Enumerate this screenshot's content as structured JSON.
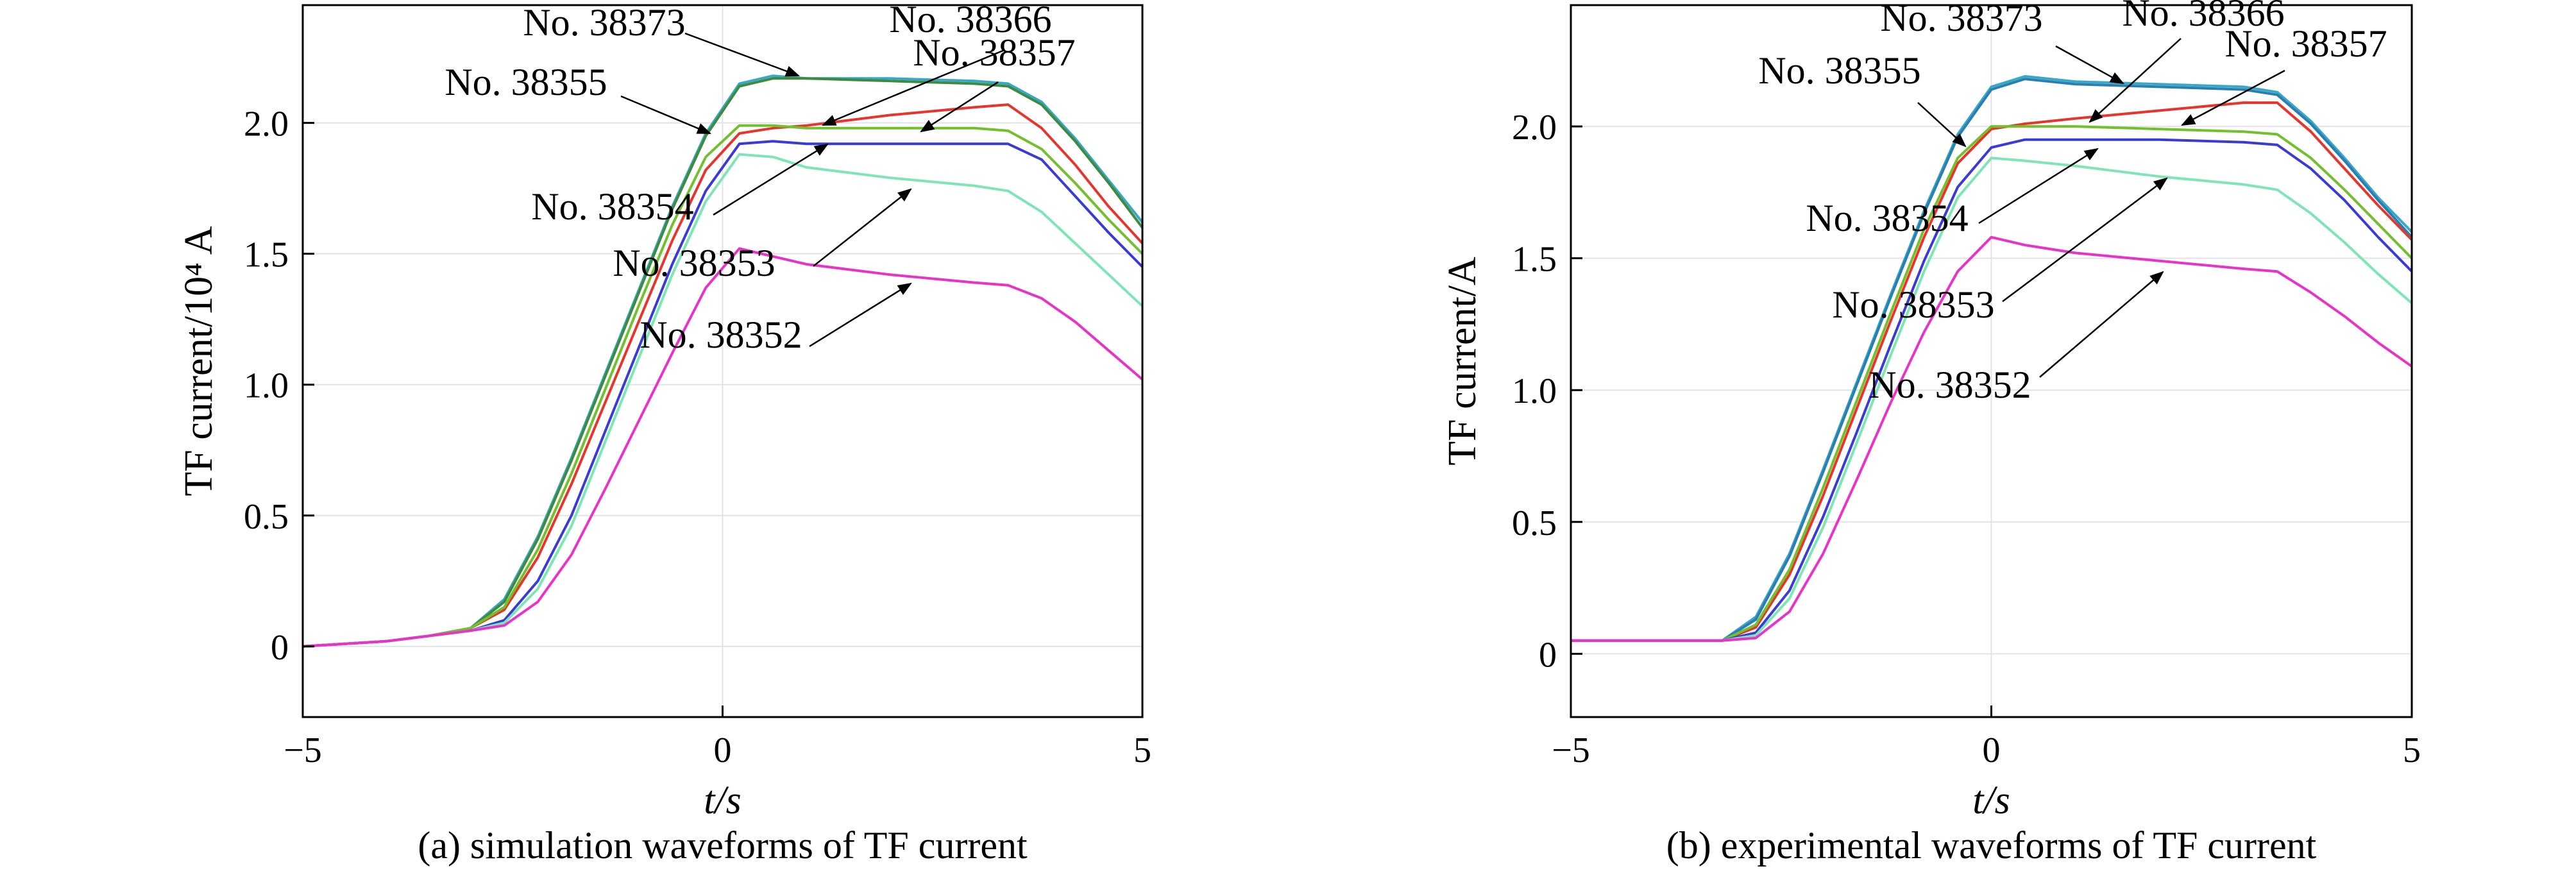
{
  "chart_data": [
    {
      "type": "line",
      "panel": "a",
      "caption": "(a) simulation waveforms of TF current",
      "xlabel": "t/s",
      "ylabel": "TF current/10⁴ A",
      "xlim": [
        -5,
        5
      ],
      "ylim": [
        -0.27,
        2.45
      ],
      "xticks": [
        -5,
        0,
        5
      ],
      "xtick_labels": [
        "−5",
        "0",
        "5"
      ],
      "yticks": [
        0,
        0.5,
        1.0,
        1.5,
        2.0
      ],
      "ytick_labels": [
        "0",
        "0.5",
        "1.0",
        "1.5",
        "2.0"
      ],
      "grid": true,
      "series": [
        {
          "name": "No. 38373",
          "color": "#38a8c8",
          "x": [
            -5,
            -4,
            -3.5,
            -3,
            -2.6,
            -2.2,
            -1.8,
            -1.4,
            -1,
            -0.6,
            -0.2,
            0.2,
            0.6,
            1,
            2,
            3,
            3.4,
            3.8,
            4.2,
            4.6,
            5
          ],
          "y": [
            0,
            0.02,
            0.04,
            0.07,
            0.18,
            0.42,
            0.72,
            1.04,
            1.36,
            1.68,
            1.96,
            2.15,
            2.18,
            2.17,
            2.17,
            2.16,
            2.15,
            2.08,
            1.94,
            1.78,
            1.62
          ]
        },
        {
          "name": "No. 38366",
          "color": "#3e8a3e",
          "x": [
            -5,
            -4,
            -3.5,
            -3,
            -2.6,
            -2.2,
            -1.8,
            -1.4,
            -1,
            -0.6,
            -0.2,
            0.2,
            0.6,
            1,
            2,
            3,
            3.4,
            3.8,
            4.2,
            4.6,
            5
          ],
          "y": [
            0,
            0.02,
            0.04,
            0.07,
            0.17,
            0.41,
            0.71,
            1.03,
            1.35,
            1.67,
            1.95,
            2.14,
            2.17,
            2.17,
            2.16,
            2.15,
            2.14,
            2.07,
            1.93,
            1.77,
            1.6
          ]
        },
        {
          "name": "No. 38357",
          "color": "#e8342a",
          "x": [
            -5,
            -4,
            -3.5,
            -3,
            -2.6,
            -2.2,
            -1.8,
            -1.4,
            -1,
            -0.6,
            -0.2,
            0.2,
            0.6,
            1,
            2,
            3,
            3.4,
            3.8,
            4.2,
            4.6,
            5
          ],
          "y": [
            0,
            0.02,
            0.04,
            0.07,
            0.14,
            0.34,
            0.62,
            0.93,
            1.24,
            1.55,
            1.82,
            1.96,
            1.98,
            1.99,
            2.03,
            2.06,
            2.07,
            1.98,
            1.84,
            1.68,
            1.54
          ]
        },
        {
          "name": "No. 38355",
          "color": "#72c02c",
          "x": [
            -5,
            -4,
            -3.5,
            -3,
            -2.6,
            -2.2,
            -1.8,
            -1.4,
            -1,
            -0.6,
            -0.2,
            0.2,
            0.6,
            1,
            2,
            3,
            3.4,
            3.8,
            4.2,
            4.6,
            5
          ],
          "y": [
            0,
            0.02,
            0.04,
            0.07,
            0.15,
            0.37,
            0.66,
            0.98,
            1.3,
            1.61,
            1.87,
            1.99,
            1.99,
            1.98,
            1.98,
            1.98,
            1.97,
            1.9,
            1.77,
            1.63,
            1.5
          ]
        },
        {
          "name": "No. 38354",
          "color": "#3a3ad8",
          "x": [
            -5,
            -4,
            -3.5,
            -3,
            -2.6,
            -2.2,
            -1.8,
            -1.4,
            -1,
            -0.6,
            -0.2,
            0.2,
            0.6,
            1,
            2,
            3,
            3.4,
            3.8,
            4.2,
            4.6,
            5
          ],
          "y": [
            0,
            0.02,
            0.04,
            0.06,
            0.1,
            0.25,
            0.5,
            0.82,
            1.14,
            1.46,
            1.74,
            1.92,
            1.93,
            1.92,
            1.92,
            1.92,
            1.92,
            1.86,
            1.72,
            1.58,
            1.45
          ]
        },
        {
          "name": "No. 38353",
          "color": "#7ce6b4",
          "x": [
            -5,
            -4,
            -3.5,
            -3,
            -2.6,
            -2.2,
            -1.8,
            -1.4,
            -1,
            -0.6,
            -0.2,
            0.2,
            0.6,
            1,
            2,
            3,
            3.4,
            3.8,
            4.2,
            4.6,
            5
          ],
          "y": [
            0,
            0.02,
            0.04,
            0.06,
            0.09,
            0.22,
            0.46,
            0.78,
            1.1,
            1.42,
            1.7,
            1.88,
            1.87,
            1.83,
            1.79,
            1.76,
            1.74,
            1.66,
            1.54,
            1.42,
            1.3
          ]
        },
        {
          "name": "No. 38352",
          "color": "#e832c8",
          "x": [
            -5,
            -4,
            -3.5,
            -3,
            -2.6,
            -2.2,
            -1.8,
            -1.4,
            -1,
            -0.6,
            -0.2,
            0.2,
            0.6,
            1,
            2,
            3,
            3.4,
            3.8,
            4.2,
            4.6,
            5
          ],
          "y": [
            0,
            0.02,
            0.04,
            0.06,
            0.08,
            0.17,
            0.35,
            0.6,
            0.86,
            1.12,
            1.37,
            1.52,
            1.49,
            1.46,
            1.42,
            1.39,
            1.38,
            1.33,
            1.24,
            1.13,
            1.02
          ]
        }
      ]
    },
    {
      "type": "line",
      "panel": "b",
      "caption": "(b) experimental waveforms of TF current",
      "xlabel": "t/s",
      "ylabel": "TF current/A",
      "xlim": [
        -5,
        5
      ],
      "ylim": [
        -0.24,
        2.46
      ],
      "xticks": [
        -5,
        0,
        5
      ],
      "xtick_labels": [
        "−5",
        "0",
        "5"
      ],
      "yticks": [
        0,
        0.5,
        1.0,
        1.5,
        2.0
      ],
      "ytick_labels": [
        "0",
        "0.5",
        "1.0",
        "1.5",
        "2.0"
      ],
      "grid": true,
      "series": [
        {
          "name": "No. 38373",
          "color": "#38a8c8",
          "x": [
            -5,
            -4,
            -3.2,
            -2.8,
            -2.4,
            -2,
            -1.6,
            -1.2,
            -0.8,
            -0.4,
            0,
            0.4,
            1,
            2,
            3,
            3.4,
            3.8,
            4.2,
            4.6,
            5
          ],
          "y": [
            0.05,
            0.05,
            0.05,
            0.14,
            0.38,
            0.7,
            1.03,
            1.36,
            1.68,
            1.97,
            2.15,
            2.19,
            2.17,
            2.16,
            2.15,
            2.13,
            2.02,
            1.88,
            1.73,
            1.6
          ]
        },
        {
          "name": "No. 38366",
          "color": "#2a7fb0",
          "x": [
            -5,
            -4,
            -3.2,
            -2.8,
            -2.4,
            -2,
            -1.6,
            -1.2,
            -0.8,
            -0.4,
            0,
            0.4,
            1,
            2,
            3,
            3.4,
            3.8,
            4.2,
            4.6,
            5
          ],
          "y": [
            0.05,
            0.05,
            0.05,
            0.13,
            0.37,
            0.69,
            1.02,
            1.35,
            1.67,
            1.96,
            2.14,
            2.18,
            2.16,
            2.15,
            2.14,
            2.12,
            2.01,
            1.87,
            1.72,
            1.58
          ]
        },
        {
          "name": "No. 38357",
          "color": "#e8342a",
          "x": [
            -5,
            -4,
            -3.2,
            -2.8,
            -2.4,
            -2,
            -1.6,
            -1.2,
            -0.8,
            -0.4,
            0,
            0.4,
            1,
            2,
            3,
            3.4,
            3.8,
            4.2,
            4.6,
            5
          ],
          "y": [
            0.05,
            0.05,
            0.05,
            0.1,
            0.3,
            0.6,
            0.93,
            1.26,
            1.58,
            1.86,
            1.99,
            2.01,
            2.03,
            2.06,
            2.09,
            2.09,
            1.98,
            1.84,
            1.7,
            1.57
          ]
        },
        {
          "name": "No. 38355",
          "color": "#72c02c",
          "x": [
            -5,
            -4,
            -3.2,
            -2.8,
            -2.4,
            -2,
            -1.6,
            -1.2,
            -0.8,
            -0.4,
            0,
            0.4,
            1,
            2,
            3,
            3.4,
            3.8,
            4.2,
            4.6,
            5
          ],
          "y": [
            0.05,
            0.05,
            0.05,
            0.11,
            0.32,
            0.63,
            0.96,
            1.29,
            1.61,
            1.88,
            2.0,
            2.0,
            2.0,
            1.99,
            1.98,
            1.97,
            1.88,
            1.76,
            1.63,
            1.5
          ]
        },
        {
          "name": "No. 38354",
          "color": "#3a3ad8",
          "x": [
            -5,
            -4,
            -3.2,
            -2.8,
            -2.4,
            -2,
            -1.6,
            -1.2,
            -0.8,
            -0.4,
            0,
            0.4,
            1,
            2,
            3,
            3.4,
            3.8,
            4.2,
            4.6,
            5
          ],
          "y": [
            0.05,
            0.05,
            0.05,
            0.08,
            0.24,
            0.52,
            0.84,
            1.17,
            1.49,
            1.77,
            1.92,
            1.95,
            1.95,
            1.95,
            1.94,
            1.93,
            1.84,
            1.72,
            1.58,
            1.45
          ]
        },
        {
          "name": "No. 38353",
          "color": "#7ce6b4",
          "x": [
            -5,
            -4,
            -3.2,
            -2.8,
            -2.4,
            -2,
            -1.6,
            -1.2,
            -0.8,
            -0.4,
            0,
            0.4,
            1,
            2,
            3,
            3.4,
            3.8,
            4.2,
            4.6,
            5
          ],
          "y": [
            0.05,
            0.05,
            0.05,
            0.07,
            0.21,
            0.48,
            0.8,
            1.13,
            1.45,
            1.73,
            1.88,
            1.87,
            1.85,
            1.81,
            1.78,
            1.76,
            1.67,
            1.56,
            1.44,
            1.33
          ]
        },
        {
          "name": "No. 38352",
          "color": "#e832c8",
          "x": [
            -5,
            -4,
            -3.2,
            -2.8,
            -2.4,
            -2,
            -1.6,
            -1.2,
            -0.8,
            -0.4,
            0,
            0.4,
            1,
            2,
            3,
            3.4,
            3.8,
            4.2,
            4.6,
            5
          ],
          "y": [
            0.05,
            0.05,
            0.05,
            0.06,
            0.16,
            0.38,
            0.66,
            0.95,
            1.22,
            1.45,
            1.58,
            1.55,
            1.52,
            1.49,
            1.46,
            1.45,
            1.37,
            1.28,
            1.18,
            1.09
          ]
        }
      ]
    }
  ]
}
